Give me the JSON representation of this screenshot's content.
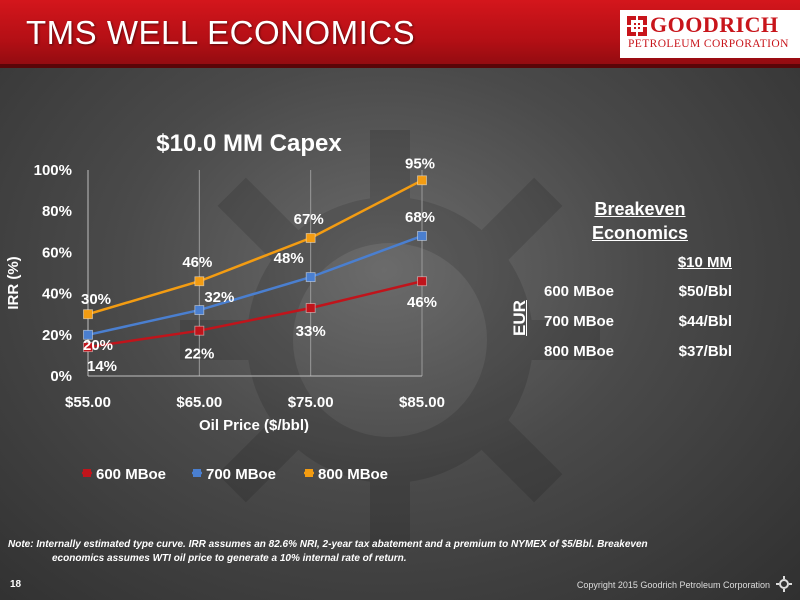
{
  "slide": {
    "title": "TMS WELL ECONOMICS",
    "page_number": "18",
    "copyright": "Copyright 2015 Goodrich Petroleum Corporation"
  },
  "logo": {
    "name": "GOODRICH",
    "subtitle": "PETROLEUM CORPORATION",
    "color": "#c8151b"
  },
  "chart_data": {
    "type": "line",
    "title": "$10.0 MM Capex",
    "xlabel": "Oil Price ($/bbl)",
    "ylabel": "IRR (%)",
    "categories": [
      "$55.00",
      "$65.00",
      "$75.00",
      "$85.00"
    ],
    "x": [
      55,
      65,
      75,
      85
    ],
    "y_ticks": [
      "0%",
      "20%",
      "40%",
      "60%",
      "80%",
      "100%"
    ],
    "ylim": [
      0,
      100
    ],
    "grid": "vertical",
    "legend_position": "bottom",
    "series": [
      {
        "name": "600 MBoe",
        "color": "#c0141b",
        "values": [
          14,
          22,
          33,
          46
        ],
        "labels": [
          "14%",
          "22%",
          "33%",
          "46%"
        ]
      },
      {
        "name": "700 MBoe",
        "color": "#4a7fd0",
        "values": [
          20,
          32,
          48,
          68
        ],
        "labels": [
          "20%",
          "32%",
          "48%",
          "68%"
        ]
      },
      {
        "name": "800 MBoe",
        "color": "#f39c12",
        "values": [
          30,
          46,
          67,
          95
        ],
        "labels": [
          "30%",
          "46%",
          "67%",
          "95%"
        ]
      }
    ]
  },
  "breakeven": {
    "title_line1": "Breakeven",
    "title_line2": "Economics",
    "column_header": "$10 MM",
    "axis_label": "EUR",
    "rows": [
      {
        "label": "600 MBoe",
        "value": "$50/Bbl"
      },
      {
        "label": "700 MBoe",
        "value": "$44/Bbl"
      },
      {
        "label": "800 MBoe",
        "value": "$37/Bbl"
      }
    ]
  },
  "note": {
    "line1": "Note: Internally estimated type curve. IRR assumes an 82.6% NRI, 2-year tax abatement and a premium to NYMEX of $5/Bbl. Breakeven",
    "line2": "economics assumes WTI oil price to generate a 10% internal rate of return."
  }
}
